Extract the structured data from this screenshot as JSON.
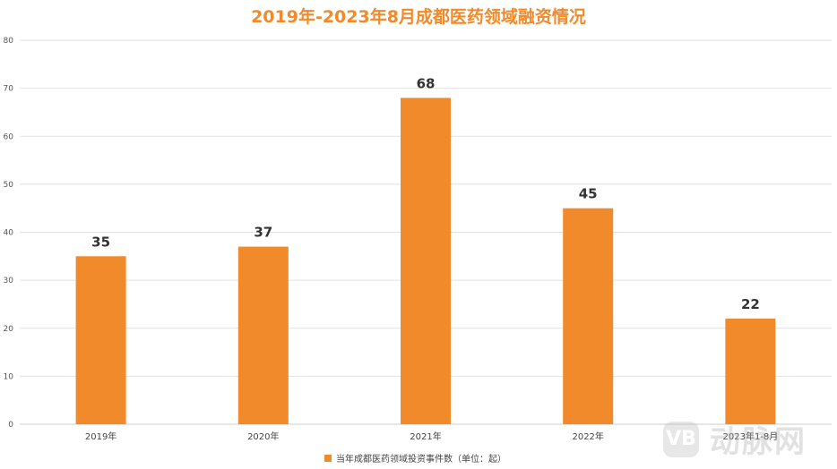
{
  "chart_data": {
    "type": "bar",
    "title": "2019年-2023年8月成都医药领域融资情况",
    "categories": [
      "2019年",
      "2020年",
      "2021年",
      "2022年",
      "2023年1-8月"
    ],
    "series": [
      {
        "name": "当年成都医药领域投资事件数（单位：起）",
        "values": [
          35,
          37,
          68,
          45,
          22
        ]
      }
    ],
    "ylim": [
      0,
      80
    ],
    "yticks": [
      0,
      10,
      20,
      30,
      40,
      50,
      60,
      70,
      80
    ],
    "grid": true,
    "legend": "bottom",
    "color": "#f08a2a"
  },
  "watermark": {
    "logo": "VB",
    "text": "动脉网"
  }
}
